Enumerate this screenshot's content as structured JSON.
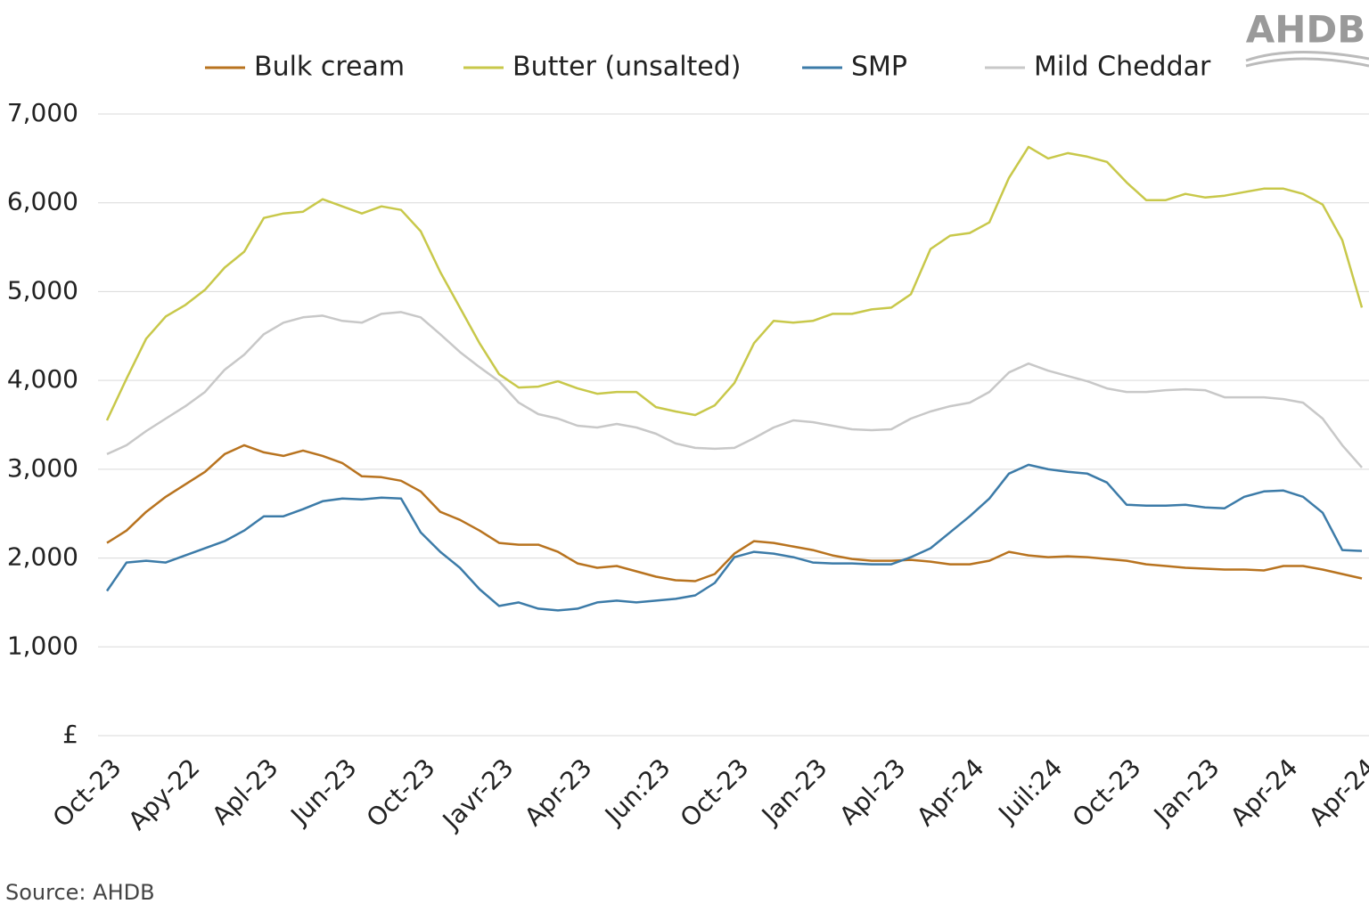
{
  "chart_data": {
    "type": "line",
    "logo": "AHDB",
    "source": "Source: AHDB",
    "categories": [
      "Oct-23",
      null,
      null,
      null,
      "Apy-22",
      null,
      null,
      null,
      "Apl-23",
      null,
      null,
      null,
      "Jun-23",
      null,
      null,
      null,
      "Oct-23",
      null,
      null,
      null,
      "Javr-23",
      null,
      null,
      null,
      "Apr-23",
      null,
      null,
      null,
      "Jun:23",
      null,
      null,
      null,
      "Oct-23",
      null,
      null,
      null,
      "Jan-23",
      null,
      null,
      null,
      "Apl-23",
      null,
      null,
      null,
      "Apr-24",
      null,
      null,
      null,
      "Juil:24",
      null,
      null,
      null,
      "Oct-23",
      null,
      null,
      null,
      "Jan-23",
      null,
      null,
      null,
      "Apr-24",
      null,
      null,
      null,
      "Apr-24"
    ],
    "series": [
      {
        "name": "Bulk cream",
        "color": "#b8731f",
        "values": [
          2170,
          2310,
          2520,
          2690,
          2830,
          2970,
          3170,
          3270,
          3190,
          3150,
          3210,
          3150,
          3070,
          2920,
          2910,
          2870,
          2750,
          2520,
          2430,
          2310,
          2170,
          2150,
          2150,
          2070,
          1940,
          1890,
          1910,
          1850,
          1790,
          1750,
          1740,
          1820,
          2050,
          2190,
          2170,
          2130,
          2090,
          2030,
          1990,
          1970,
          1970,
          1980,
          1960,
          1930,
          1930,
          1970,
          2070,
          2030,
          2010,
          2020,
          2010,
          1990,
          1970,
          1930,
          1910,
          1890,
          1880,
          1870,
          1870,
          1860,
          1910,
          1910,
          1870,
          1820,
          1770
        ]
      },
      {
        "name": "Butter (unsalted)",
        "color": "#c8c84a",
        "values": [
          3550,
          4020,
          4470,
          4720,
          4850,
          5020,
          5270,
          5450,
          5830,
          5880,
          5900,
          6040,
          5960,
          5880,
          5960,
          5920,
          5680,
          5220,
          4820,
          4420,
          4070,
          3920,
          3930,
          3990,
          3910,
          3850,
          3870,
          3870,
          3700,
          3650,
          3610,
          3720,
          3970,
          4420,
          4670,
          4650,
          4670,
          4750,
          4750,
          4800,
          4820,
          4970,
          5480,
          5630,
          5660,
          5780,
          6280,
          6630,
          6500,
          6560,
          6520,
          6460,
          6230,
          6030,
          6030,
          6100,
          6060,
          6080,
          6120,
          6160,
          6160,
          6100,
          5980,
          5580,
          4820
        ]
      },
      {
        "name": "SMP",
        "color": "#3c7ba8",
        "values": [
          1630,
          1950,
          1970,
          1950,
          2030,
          2110,
          2190,
          2310,
          2470,
          2470,
          2550,
          2640,
          2670,
          2660,
          2680,
          2670,
          2290,
          2070,
          1890,
          1650,
          1460,
          1500,
          1430,
          1410,
          1430,
          1500,
          1520,
          1500,
          1520,
          1540,
          1580,
          1720,
          2010,
          2070,
          2050,
          2010,
          1950,
          1940,
          1940,
          1930,
          1930,
          2010,
          2110,
          2290,
          2470,
          2670,
          2950,
          3050,
          3000,
          2970,
          2950,
          2850,
          2600,
          2590,
          2590,
          2600,
          2570,
          2560,
          2690,
          2750,
          2760,
          2690,
          2510,
          2090,
          2080
        ]
      },
      {
        "name": "Mild Cheddar",
        "color": "#c8c8c8",
        "values": [
          3170,
          3270,
          3430,
          3570,
          3710,
          3870,
          4120,
          4290,
          4520,
          4650,
          4710,
          4730,
          4670,
          4650,
          4750,
          4770,
          4710,
          4520,
          4320,
          4150,
          3990,
          3750,
          3620,
          3570,
          3490,
          3470,
          3510,
          3470,
          3400,
          3290,
          3240,
          3230,
          3240,
          3350,
          3470,
          3550,
          3530,
          3490,
          3450,
          3440,
          3450,
          3570,
          3650,
          3710,
          3750,
          3870,
          4090,
          4190,
          4110,
          4050,
          3990,
          3910,
          3870,
          3870,
          3890,
          3900,
          3890,
          3810,
          3810,
          3810,
          3790,
          3750,
          3570,
          3270,
          3020
        ]
      }
    ],
    "ylim": [
      0,
      7000
    ],
    "yticks": [
      {
        "value": 0,
        "label": "£"
      },
      {
        "value": 1000,
        "label": "1,000"
      },
      {
        "value": 2000,
        "label": "2,000"
      },
      {
        "value": 3000,
        "label": "3,000"
      },
      {
        "value": 4000,
        "label": "4,000"
      },
      {
        "value": 5000,
        "label": "5,000"
      },
      {
        "value": 6000,
        "label": "6,000"
      },
      {
        "value": 7000,
        "label": "7,000"
      }
    ],
    "grid": true
  }
}
